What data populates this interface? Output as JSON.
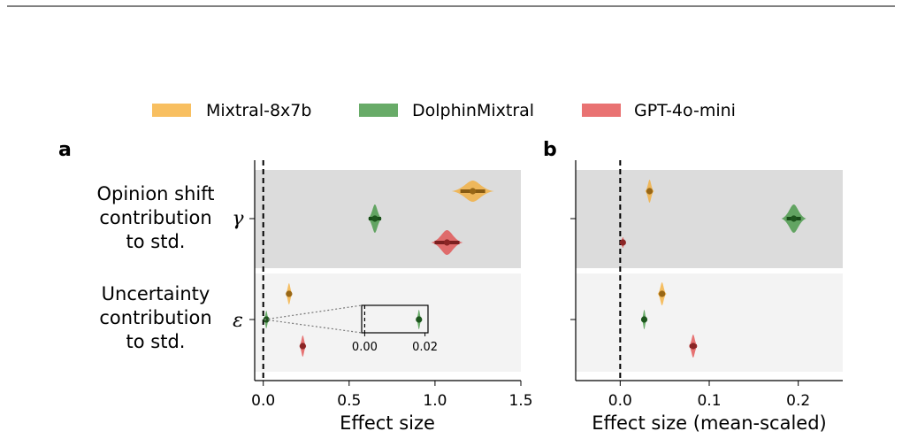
{
  "colors": {
    "Mixtral-8x7b": "#f5a623",
    "DolphinMixtral": "#2e8b2e",
    "GPT-4o-mini": "#e03b3b",
    "band_top": "#dcdcdc",
    "band_bottom": "#f3f3f3"
  },
  "legend": [
    "Mixtral-8x7b",
    "DolphinMixtral",
    "GPT-4o-mini"
  ],
  "rows": [
    {
      "label_lines": [
        "Opinion shift",
        "contribution",
        "to std."
      ],
      "symbol": "γ"
    },
    {
      "label_lines": [
        "Uncertainty",
        "contribution",
        "to std."
      ],
      "symbol": "ε"
    }
  ],
  "chart_data": [
    {
      "panel": "a",
      "type": "violin",
      "xlabel": "Effect size",
      "xlim": [
        -0.05,
        1.5
      ],
      "xticks": [
        "0.0",
        "0.5",
        "1.0",
        "1.5"
      ],
      "xtick_values": [
        0.0,
        0.5,
        1.0,
        1.5
      ],
      "reference_line": 0.0,
      "series": [
        {
          "name": "Mixtral-8x7b",
          "gamma": 1.22,
          "epsilon": 0.15
        },
        {
          "name": "DolphinMixtral",
          "gamma": 0.65,
          "epsilon": 0.018
        },
        {
          "name": "GPT-4o-mini",
          "gamma": 1.07,
          "epsilon": 0.23
        }
      ],
      "inset": {
        "xticks": [
          "0.00",
          "0.02"
        ],
        "xtick_values": [
          0.0,
          0.02
        ],
        "xlim": [
          -0.001,
          0.021
        ]
      }
    },
    {
      "panel": "b",
      "type": "violin",
      "xlabel": "Effect size (mean-scaled)",
      "xlim": [
        -0.05,
        0.25
      ],
      "xticks": [
        "0.0",
        "0.1",
        "0.2"
      ],
      "xtick_values": [
        0.0,
        0.1,
        0.2
      ],
      "reference_line": 0.0,
      "series": [
        {
          "name": "Mixtral-8x7b",
          "gamma": 0.033,
          "epsilon": 0.047
        },
        {
          "name": "DolphinMixtral",
          "gamma": 0.195,
          "epsilon": 0.027
        },
        {
          "name": "GPT-4o-mini",
          "gamma": 0.003,
          "epsilon": 0.082
        }
      ]
    }
  ]
}
